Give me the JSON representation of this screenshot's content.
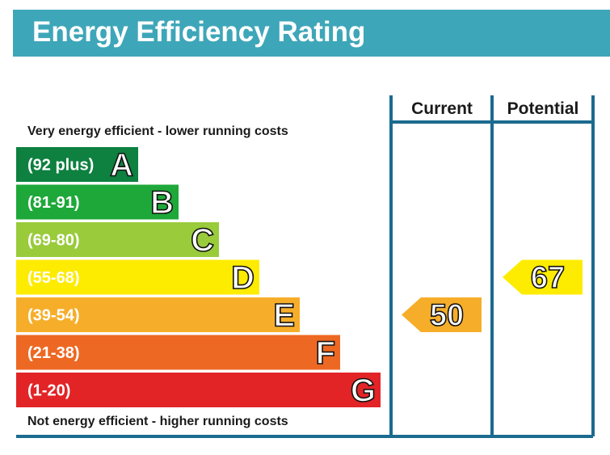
{
  "header": {
    "title": "Energy Efficiency Rating",
    "color": "#3ea6b9"
  },
  "chart_data": {
    "type": "bar",
    "top_label": "Very energy efficient - lower running costs",
    "bottom_label": "Not energy efficient - higher running costs",
    "columns": [
      "Current",
      "Potential"
    ],
    "frame_color": "#1b6b8f",
    "bands": [
      {
        "letter": "A",
        "range": "(92 plus)",
        "min": 92,
        "max": null,
        "color": "#0e8040"
      },
      {
        "letter": "B",
        "range": "(81-91)",
        "min": 81,
        "max": 91,
        "color": "#1ea83a"
      },
      {
        "letter": "C",
        "range": "(69-80)",
        "min": 69,
        "max": 80,
        "color": "#99cb3b"
      },
      {
        "letter": "D",
        "range": "(55-68)",
        "min": 55,
        "max": 68,
        "color": "#fdeb00"
      },
      {
        "letter": "E",
        "range": "(39-54)",
        "min": 39,
        "max": 54,
        "color": "#f6ae2a"
      },
      {
        "letter": "F",
        "range": "(21-38)",
        "min": 21,
        "max": 38,
        "color": "#ed6823"
      },
      {
        "letter": "G",
        "range": "(1-20)",
        "min": 1,
        "max": 20,
        "color": "#e22427"
      }
    ],
    "ratings": [
      {
        "column": "Current",
        "value": 50,
        "band": "E",
        "color": "#f6ae2a"
      },
      {
        "column": "Potential",
        "value": 67,
        "band": "D",
        "color": "#fdeb00"
      }
    ]
  }
}
